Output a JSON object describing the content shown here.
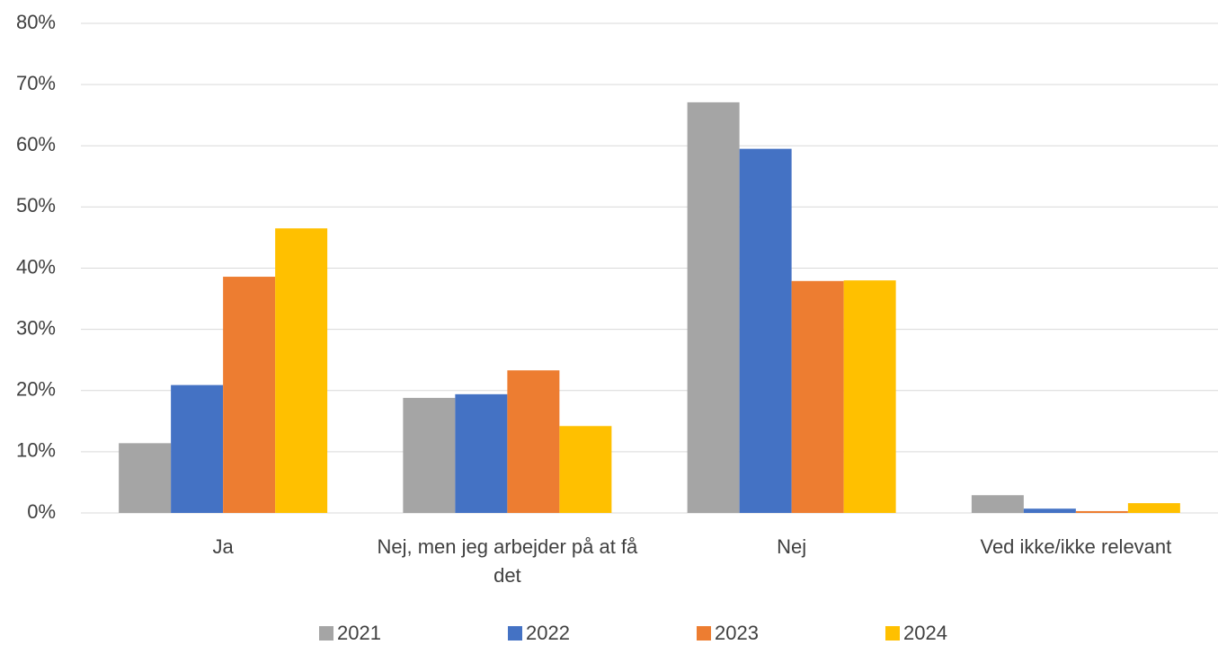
{
  "chart_data": {
    "type": "bar",
    "categories": [
      "Ja",
      "Nej, men jeg arbejder på at få det",
      "Nej",
      "Ved ikke/ikke relevant"
    ],
    "series": [
      {
        "name": "2021",
        "color": "#a5a5a5",
        "values": [
          11.4,
          18.8,
          67.1,
          2.9
        ]
      },
      {
        "name": "2022",
        "color": "#4472c4",
        "values": [
          20.9,
          19.4,
          59.5,
          0.7
        ]
      },
      {
        "name": "2023",
        "color": "#ed7d31",
        "values": [
          38.6,
          23.3,
          37.9,
          0.3
        ]
      },
      {
        "name": "2024",
        "color": "#ffc000",
        "values": [
          46.5,
          14.2,
          38.0,
          1.6
        ]
      }
    ],
    "ylim": [
      0,
      80
    ],
    "yticks": [
      {
        "value": 0,
        "label": "0%"
      },
      {
        "value": 10,
        "label": "10%"
      },
      {
        "value": 20,
        "label": "20%"
      },
      {
        "value": 30,
        "label": "30%"
      },
      {
        "value": 40,
        "label": "40%"
      },
      {
        "value": 50,
        "label": "50%"
      },
      {
        "value": 60,
        "label": "60%"
      },
      {
        "value": 70,
        "label": "70%"
      },
      {
        "value": 80,
        "label": "80%"
      }
    ],
    "grid": true,
    "legend": "bottom"
  }
}
